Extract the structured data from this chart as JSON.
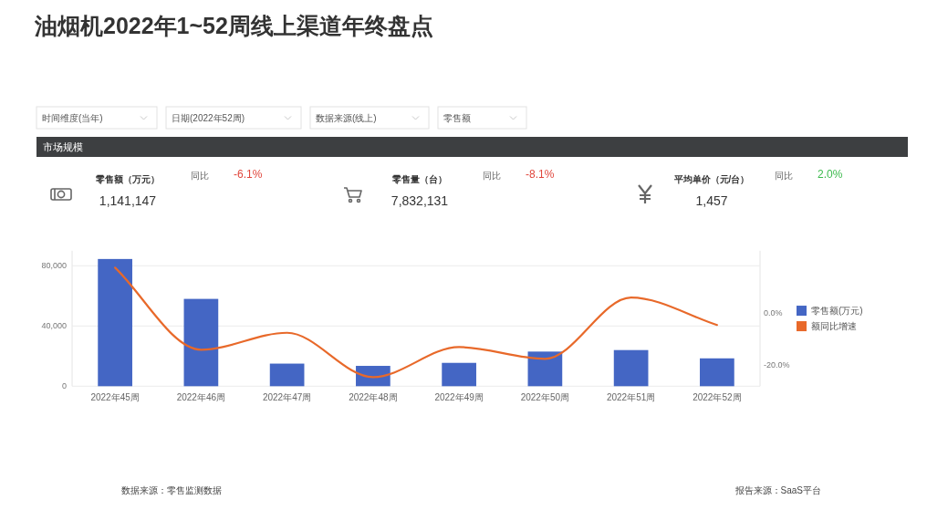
{
  "chart_data": [
    {
      "type": "other",
      "title": "油烟机2022年1~52周线上渠道年终盘点",
      "subtitle": "市场规模",
      "annotations": [
        "时间维度(当年)",
        "日期(2022年52周)",
        "数据来源(线上)",
        "零售额"
      ],
      "categories": [
        "零售额（万元）",
        "零售量（台）",
        "平均单价（元/台）"
      ],
      "series": [
        {
          "values": [
            1141147,
            7832131,
            1457
          ],
          "value_labels": [
            "1,141,147",
            "7,832,131",
            "1,457"
          ]
        },
        {
          "name": "同比",
          "values": [
            -6.1,
            -8.1,
            2.0
          ],
          "value_labels": [
            "-6.1%",
            "-8.1%",
            "2.0%"
          ],
          "colors": [
            "#e0463c",
            "#e0463c",
            "#3dba4e"
          ]
        }
      ]
    },
    {
      "type": "bar",
      "categories": [
        "2022年45周",
        "2022年46周",
        "2022年47周",
        "2022年48周",
        "2022年49周",
        "2022年50周",
        "2022年51周",
        "2022年52周"
      ],
      "series": [
        {
          "name": "零售额(万元)",
          "type": "bar",
          "color": "#4466c4",
          "values": [
            84500,
            58000,
            15000,
            13500,
            15500,
            23000,
            24000,
            18500
          ]
        },
        {
          "name": "额同比增速",
          "type": "line",
          "axis": "y2",
          "color": "#e8692a",
          "values": [
            17.5,
            -14,
            -7.5,
            -24.5,
            -13,
            -17.5,
            6,
            -4.5
          ]
        }
      ],
      "ylim": [
        0,
        90000
      ],
      "yticks": [
        0,
        {
          "value": 40000,
          "label": "40,000"
        },
        {
          "value": 80000,
          "label": "80,000"
        }
      ],
      "y2lim": [
        -28,
        24
      ],
      "y2ticks": [
        {
          "value": -20,
          "label": "-20.0%"
        },
        {
          "value": 0,
          "label": "0.0%"
        }
      ],
      "grid": "y",
      "legend": "right",
      "annotations": [
        "数据来源：零售监测数据",
        "报告来源：SaaS平台"
      ]
    }
  ]
}
